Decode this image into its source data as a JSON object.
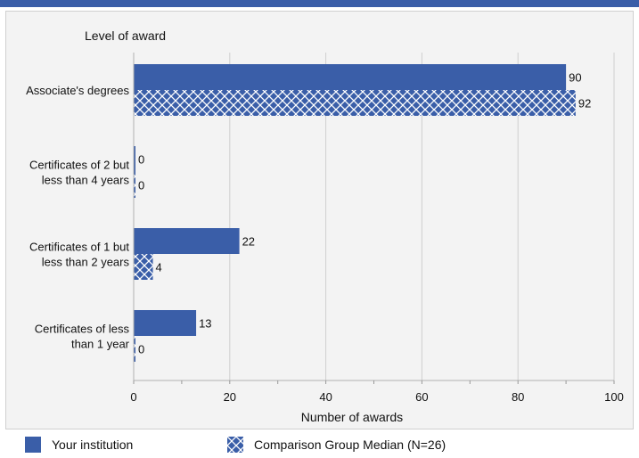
{
  "chart_data": {
    "type": "bar",
    "orientation": "horizontal",
    "title": "Level of award",
    "xlabel": "Number of awards",
    "ylabel": "",
    "xlim": [
      0,
      100
    ],
    "xticks": [
      0,
      20,
      40,
      60,
      80,
      100
    ],
    "grid": true,
    "legend_position": "bottom",
    "categories": [
      [
        "Associate's degrees"
      ],
      [
        "Certificates of 2 but",
        "less than 4 years"
      ],
      [
        "Certificates of 1 but",
        "less than 2 years"
      ],
      [
        "Certificates of less",
        "than 1 year"
      ]
    ],
    "series": [
      {
        "name": "Your institution",
        "values": [
          90,
          0,
          22,
          13
        ],
        "color": "#3a5ea8",
        "pattern": "solid"
      },
      {
        "name": "Comparison Group Median (N=26)",
        "values": [
          92,
          0,
          4,
          0
        ],
        "color": "#3a5ea8",
        "pattern": "crosshatch"
      }
    ]
  }
}
